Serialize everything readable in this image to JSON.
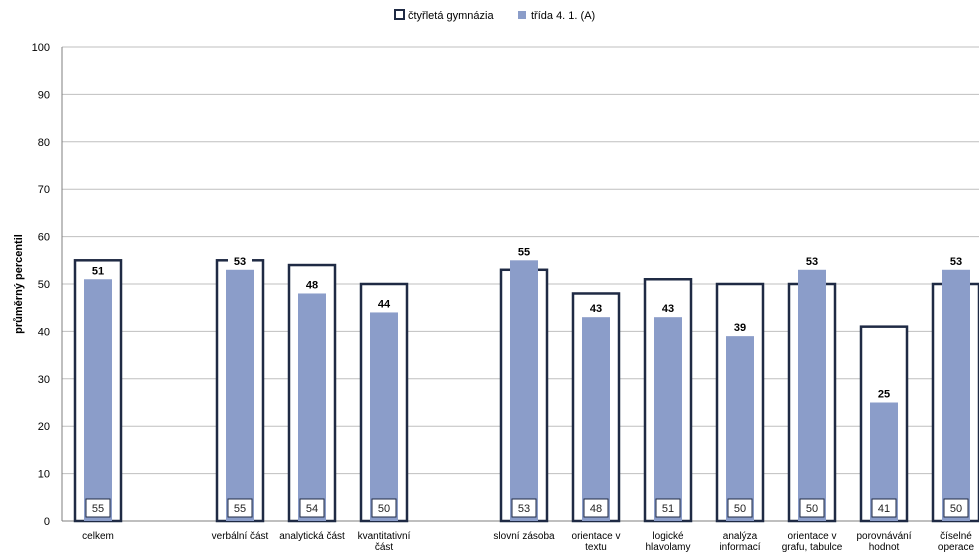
{
  "chart_data": {
    "type": "bar",
    "ylabel": "průměrný percentil",
    "ylim": [
      0,
      100
    ],
    "yticks": [
      0,
      10,
      20,
      30,
      40,
      50,
      60,
      70,
      80,
      90,
      100
    ],
    "grid": true,
    "legend_placement": "top-center",
    "categories": [
      [
        "celkem"
      ],
      [
        "verbální část"
      ],
      [
        "analytická část"
      ],
      [
        "kvantitativní",
        "část"
      ],
      [
        "slovní zásoba"
      ],
      [
        "orientace v",
        "textu"
      ],
      [
        "logické",
        "hlavolamy"
      ],
      [
        "analýza",
        "informací"
      ],
      [
        "orientace v",
        "grafu, tabulce"
      ],
      [
        "porovnávání",
        "hodnot"
      ],
      [
        "číselné",
        "operace"
      ]
    ],
    "series": [
      {
        "name": "čtyřletá gymnázia",
        "values": [
          55,
          55,
          54,
          50,
          53,
          48,
          51,
          50,
          50,
          41,
          50
        ],
        "style": "outline",
        "color": "#1f2a44"
      },
      {
        "name": "třída  4. 1. (A)",
        "values": [
          51,
          53,
          48,
          44,
          55,
          43,
          43,
          39,
          53,
          25,
          53
        ],
        "style": "fill",
        "color": "#8b9dc9"
      }
    ]
  }
}
